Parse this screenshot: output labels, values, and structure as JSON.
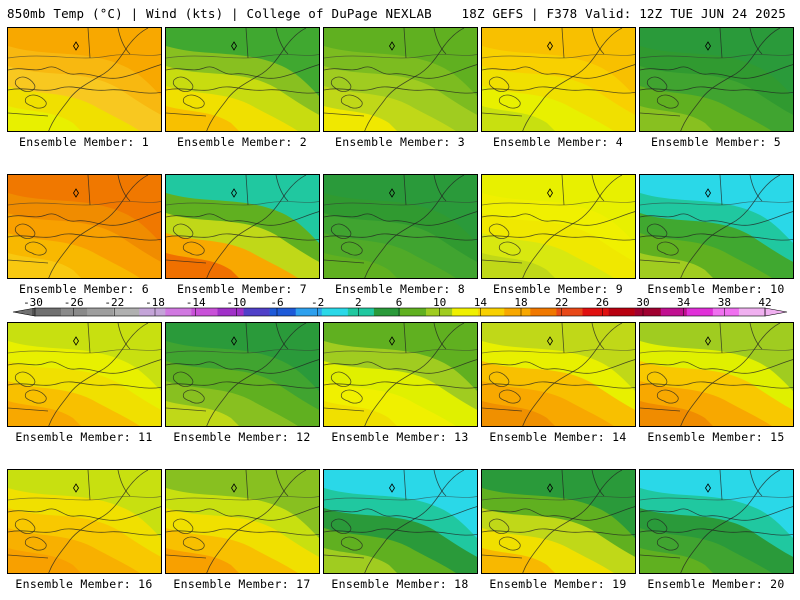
{
  "header": {
    "left": "850mb Temp (°C) | Wind (kts) | College of DuPage NEXLAB",
    "right": "18Z GEFS | F378 Valid: 12Z TUE JUN 24 2025"
  },
  "colorbar": {
    "ticks": [
      "-30",
      "-26",
      "-22",
      "-18",
      "-14",
      "-10",
      "-6",
      "-2",
      "2",
      "6",
      "10",
      "14",
      "18",
      "22",
      "26",
      "30",
      "34",
      "38",
      "42"
    ],
    "colors": [
      "#707070",
      "#8a8a8a",
      "#9e9e9e",
      "#b0b0b0",
      "#c4a4d8",
      "#d078e0",
      "#c850d8",
      "#a030c8",
      "#5040c8",
      "#1e5ad8",
      "#2ea0ee",
      "#2ad8e8",
      "#20c8a0",
      "#2a9a3a",
      "#60b020",
      "#a0cc20",
      "#f0f000",
      "#f8d000",
      "#f8a800",
      "#f07800",
      "#e84818",
      "#e01010",
      "#b80010",
      "#a00030",
      "#c01090",
      "#e030d8",
      "#f070f0",
      "#f0b0f0"
    ]
  },
  "panels": [
    {
      "label": "Ensemble Member: 1",
      "colors": [
        "#f8a800",
        "#f8b810",
        "#f8c820",
        "#f0e000",
        "#e8f000"
      ]
    },
    {
      "label": "Ensemble Member: 2",
      "colors": [
        "#40a830",
        "#88c020",
        "#c8dc10",
        "#f0e000",
        "#f8c000"
      ]
    },
    {
      "label": "Ensemble Member: 3",
      "colors": [
        "#60b020",
        "#7cbc20",
        "#a0cc20",
        "#c0d818",
        "#f0e800"
      ]
    },
    {
      "label": "Ensemble Member: 4",
      "colors": [
        "#f8c000",
        "#f8d000",
        "#f0e000",
        "#e8f000",
        "#c8e010"
      ]
    },
    {
      "label": "Ensemble Member: 5",
      "colors": [
        "#2a9a3a",
        "#309a30",
        "#40a430",
        "#60b020",
        "#88c020"
      ]
    },
    {
      "label": "Ensemble Member: 6",
      "colors": [
        "#f07800",
        "#f08c00",
        "#f8a000",
        "#f8b800",
        "#f8c810"
      ]
    },
    {
      "label": "Ensemble Member: 7",
      "colors": [
        "#20c8a0",
        "#60b020",
        "#c0d818",
        "#f8a800",
        "#f07000"
      ]
    },
    {
      "label": "Ensemble Member: 8",
      "colors": [
        "#2a9a3a",
        "#309a30",
        "#40a430",
        "#50aa28",
        "#60b020"
      ]
    },
    {
      "label": "Ensemble Member: 9",
      "colors": [
        "#e8f000",
        "#f0f000",
        "#f0e800",
        "#d8e810",
        "#c0d818"
      ]
    },
    {
      "label": "Ensemble Member: 10",
      "colors": [
        "#2ad8e8",
        "#20c8a0",
        "#40a830",
        "#60b020",
        "#a0cc20"
      ]
    },
    {
      "label": "Ensemble Member: 11",
      "colors": [
        "#c8e010",
        "#e8f000",
        "#f0e000",
        "#f8c000",
        "#f8a800"
      ]
    },
    {
      "label": "Ensemble Member: 12",
      "colors": [
        "#2a9a3a",
        "#40a430",
        "#60b020",
        "#88c020",
        "#c0d818"
      ]
    },
    {
      "label": "Ensemble Member: 13",
      "colors": [
        "#60b020",
        "#a0cc20",
        "#e0f000",
        "#f0f000",
        "#f0e000"
      ]
    },
    {
      "label": "Ensemble Member: 14",
      "colors": [
        "#c0d818",
        "#e8f000",
        "#f8c000",
        "#f8a800",
        "#f09000"
      ]
    },
    {
      "label": "Ensemble Member: 15",
      "colors": [
        "#a0cc20",
        "#e0f000",
        "#f8c800",
        "#f8a800",
        "#f08c00"
      ]
    },
    {
      "label": "Ensemble Member: 16",
      "colors": [
        "#c8e010",
        "#f0e000",
        "#f8c800",
        "#f8b000",
        "#f8a000"
      ]
    },
    {
      "label": "Ensemble Member: 17",
      "colors": [
        "#88c020",
        "#c8e010",
        "#f0e000",
        "#f8c000",
        "#f8a000"
      ]
    },
    {
      "label": "Ensemble Member: 18",
      "colors": [
        "#2ad8e8",
        "#20c8a0",
        "#2a9a3a",
        "#60b020",
        "#a0cc20"
      ]
    },
    {
      "label": "Ensemble Member: 19",
      "colors": [
        "#2a9a3a",
        "#60b020",
        "#c0d818",
        "#f0e000",
        "#f8b800"
      ]
    },
    {
      "label": "Ensemble Member: 20",
      "colors": [
        "#2ad8e8",
        "#20c8a0",
        "#2a9a3a",
        "#40a430",
        "#60b020"
      ]
    }
  ]
}
